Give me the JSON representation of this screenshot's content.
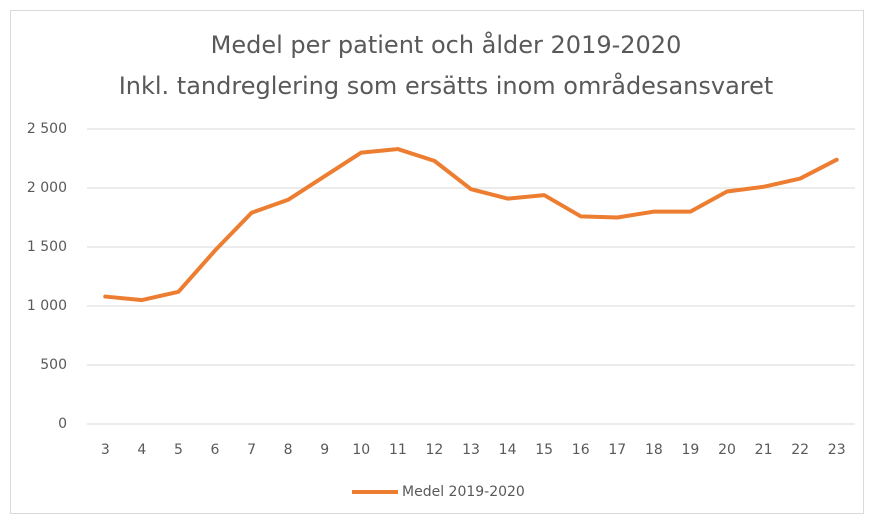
{
  "chart_data": {
    "type": "line",
    "title": "Medel per patient och ålder 2019-2020",
    "subtitle": "Inkl. tandreglering som ersätts inom områdesansvaret",
    "categories": [
      "3",
      "4",
      "5",
      "6",
      "7",
      "8",
      "9",
      "10",
      "11",
      "12",
      "13",
      "14",
      "15",
      "16",
      "17",
      "18",
      "19",
      "20",
      "21",
      "22",
      "23"
    ],
    "series": [
      {
        "name": "Medel 2019-2020",
        "color": "#ed7d31",
        "values": [
          1080,
          1050,
          1120,
          1470,
          1790,
          1900,
          2100,
          2300,
          2330,
          2230,
          1990,
          1910,
          1940,
          1760,
          1750,
          1800,
          1800,
          1970,
          2010,
          2080,
          2240
        ]
      }
    ],
    "ylim": [
      0,
      2500
    ],
    "yticks": [
      0,
      500,
      {
        "value": 1000,
        "label": "1 000"
      },
      {
        "value": 1500,
        "label": "1 500"
      },
      {
        "value": 2000,
        "label": "2 000"
      },
      {
        "value": 2500,
        "label": "2 500"
      }
    ],
    "grid": true,
    "legend": "bottom"
  }
}
